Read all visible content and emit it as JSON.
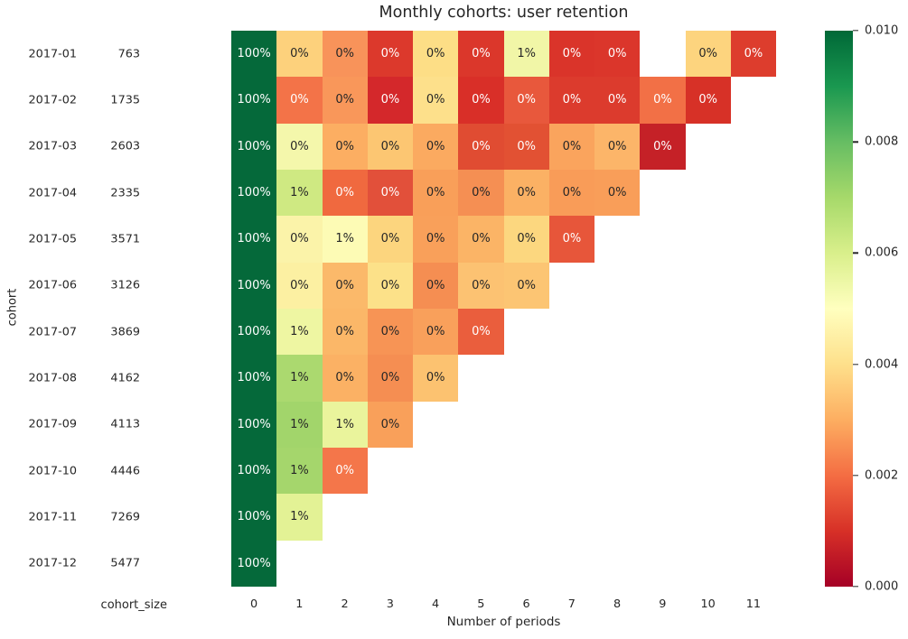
{
  "chart_data": {
    "type": "heatmap",
    "title": "Monthly cohorts: user retention",
    "xlabel": "Number of periods",
    "ylabel": "cohort",
    "cohort_size_label": "cohort_size",
    "x_ticks": [
      "0",
      "1",
      "2",
      "3",
      "4",
      "5",
      "6",
      "7",
      "8",
      "9",
      "10",
      "11"
    ],
    "legend_position": "right-colorbar",
    "grid": false,
    "rows": [
      {
        "cohort": "2017-01",
        "size": "763",
        "cells": [
          [
            "100%",
            "#05693a",
            "w"
          ],
          [
            "0%",
            "#fdd17c",
            "d"
          ],
          [
            "0%",
            "#f8935a",
            "d"
          ],
          [
            "0%",
            "#dc392c",
            "w"
          ],
          [
            "0%",
            "#fdde86",
            "d"
          ],
          [
            "0%",
            "#db372b",
            "w"
          ],
          [
            "1%",
            "#f1f6a7",
            "d"
          ],
          [
            "0%",
            "#da342a",
            "w"
          ],
          [
            "0%",
            "#db362b",
            "w"
          ],
          null,
          [
            "0%",
            "#fdd47e",
            "d"
          ],
          [
            "0%",
            "#dd3d2d",
            "w"
          ]
        ]
      },
      {
        "cohort": "2017-02",
        "size": "1735",
        "cells": [
          [
            "100%",
            "#05693a",
            "w"
          ],
          [
            "0%",
            "#f37348",
            "w"
          ],
          [
            "0%",
            "#f9975a",
            "d"
          ],
          [
            "0%",
            "#d4282b",
            "w"
          ],
          [
            "0%",
            "#fde08b",
            "d"
          ],
          [
            "0%",
            "#d92f28",
            "w"
          ],
          [
            "0%",
            "#e8583c",
            "w"
          ],
          [
            "0%",
            "#dc3b2d",
            "w"
          ],
          [
            "0%",
            "#dc3b2d",
            "w"
          ],
          [
            "0%",
            "#f27046",
            "w"
          ],
          [
            "0%",
            "#d73127",
            "w"
          ],
          null
        ]
      },
      {
        "cohort": "2017-03",
        "size": "2603",
        "cells": [
          [
            "100%",
            "#05693a",
            "w"
          ],
          [
            "0%",
            "#f4f7ab",
            "d"
          ],
          [
            "0%",
            "#fcae62",
            "d"
          ],
          [
            "0%",
            "#fcc672",
            "d"
          ],
          [
            "0%",
            "#fbaa60",
            "d"
          ],
          [
            "0%",
            "#e04c32",
            "w"
          ],
          [
            "0%",
            "#e25133",
            "w"
          ],
          [
            "0%",
            "#faa45d",
            "d"
          ],
          [
            "0%",
            "#fcb569",
            "d"
          ],
          [
            "0%",
            "#c52127",
            "w"
          ],
          null,
          null
        ]
      },
      {
        "cohort": "2017-04",
        "size": "2335",
        "cells": [
          [
            "100%",
            "#05693a",
            "w"
          ],
          [
            "1%",
            "#cfe982",
            "d"
          ],
          [
            "0%",
            "#f0693f",
            "w"
          ],
          [
            "0%",
            "#e2503a",
            "w"
          ],
          [
            "0%",
            "#f99f59",
            "d"
          ],
          [
            "0%",
            "#f58f53",
            "d"
          ],
          [
            "0%",
            "#fbb164",
            "d"
          ],
          [
            "0%",
            "#f99c58",
            "d"
          ],
          [
            "0%",
            "#f99e59",
            "d"
          ],
          null,
          null,
          null
        ]
      },
      {
        "cohort": "2017-05",
        "size": "3571",
        "cells": [
          [
            "100%",
            "#05693a",
            "w"
          ],
          [
            "0%",
            "#fbf3a9",
            "d"
          ],
          [
            "1%",
            "#fdfbb5",
            "d"
          ],
          [
            "0%",
            "#fcd57e",
            "d"
          ],
          [
            "0%",
            "#f9a05a",
            "d"
          ],
          [
            "0%",
            "#fbb466",
            "d"
          ],
          [
            "0%",
            "#fcd77f",
            "d"
          ],
          [
            "0%",
            "#e7563a",
            "w"
          ],
          null,
          null,
          null,
          null
        ]
      },
      {
        "cohort": "2017-06",
        "size": "3126",
        "cells": [
          [
            "100%",
            "#05693a",
            "w"
          ],
          [
            "0%",
            "#fcf0a2",
            "d"
          ],
          [
            "0%",
            "#fbb96a",
            "d"
          ],
          [
            "0%",
            "#fce189",
            "d"
          ],
          [
            "0%",
            "#f58e52",
            "d"
          ],
          [
            "0%",
            "#fcc272",
            "d"
          ],
          [
            "0%",
            "#fcc573",
            "d"
          ],
          null,
          null,
          null,
          null,
          null
        ]
      },
      {
        "cohort": "2017-07",
        "size": "3869",
        "cells": [
          [
            "100%",
            "#05693a",
            "w"
          ],
          [
            "1%",
            "#eef6a2",
            "d"
          ],
          [
            "0%",
            "#fbb768",
            "d"
          ],
          [
            "0%",
            "#f79455",
            "d"
          ],
          [
            "0%",
            "#f9a05b",
            "d"
          ],
          [
            "0%",
            "#ea5e3d",
            "w"
          ],
          null,
          null,
          null,
          null,
          null,
          null
        ]
      },
      {
        "cohort": "2017-08",
        "size": "4162",
        "cells": [
          [
            "100%",
            "#05693a",
            "w"
          ],
          [
            "1%",
            "#abd96f",
            "d"
          ],
          [
            "0%",
            "#fbb164",
            "d"
          ],
          [
            "0%",
            "#f58e52",
            "d"
          ],
          [
            "0%",
            "#fcc270",
            "d"
          ],
          null,
          null,
          null,
          null,
          null,
          null,
          null
        ]
      },
      {
        "cohort": "2017-09",
        "size": "4113",
        "cells": [
          [
            "100%",
            "#05693a",
            "w"
          ],
          [
            "1%",
            "#a2d56b",
            "d"
          ],
          [
            "1%",
            "#eaf49c",
            "d"
          ],
          [
            "0%",
            "#f9a05a",
            "d"
          ],
          null,
          null,
          null,
          null,
          null,
          null,
          null,
          null
        ]
      },
      {
        "cohort": "2017-10",
        "size": "4446",
        "cells": [
          [
            "100%",
            "#05693a",
            "w"
          ],
          [
            "1%",
            "#a5d66c",
            "d"
          ],
          [
            "0%",
            "#f4764a",
            "w"
          ],
          null,
          null,
          null,
          null,
          null,
          null,
          null,
          null,
          null
        ]
      },
      {
        "cohort": "2017-11",
        "size": "7269",
        "cells": [
          [
            "100%",
            "#05693a",
            "w"
          ],
          [
            "1%",
            "#e3f295",
            "d"
          ],
          null,
          null,
          null,
          null,
          null,
          null,
          null,
          null,
          null,
          null
        ]
      },
      {
        "cohort": "2017-12",
        "size": "5477",
        "cells": [
          [
            "100%",
            "#05693a",
            "w"
          ],
          null,
          null,
          null,
          null,
          null,
          null,
          null,
          null,
          null,
          null,
          null
        ]
      }
    ],
    "colorbar": {
      "colormap": "RdYlGn",
      "vmin": 0.0,
      "vmax": 0.01,
      "ticks": [
        "0.010",
        "0.008",
        "0.006",
        "0.004",
        "0.002",
        "0.000"
      ],
      "gradient_bottom_to_top": [
        "#a50026",
        "#d73027",
        "#f46d43",
        "#fdae61",
        "#fee08b",
        "#ffffbf",
        "#d9ef8b",
        "#a6d96a",
        "#66bd63",
        "#1a9850",
        "#006837"
      ]
    },
    "annotation_text_colors": {
      "w": "#ffffff",
      "d": "#262626"
    }
  }
}
